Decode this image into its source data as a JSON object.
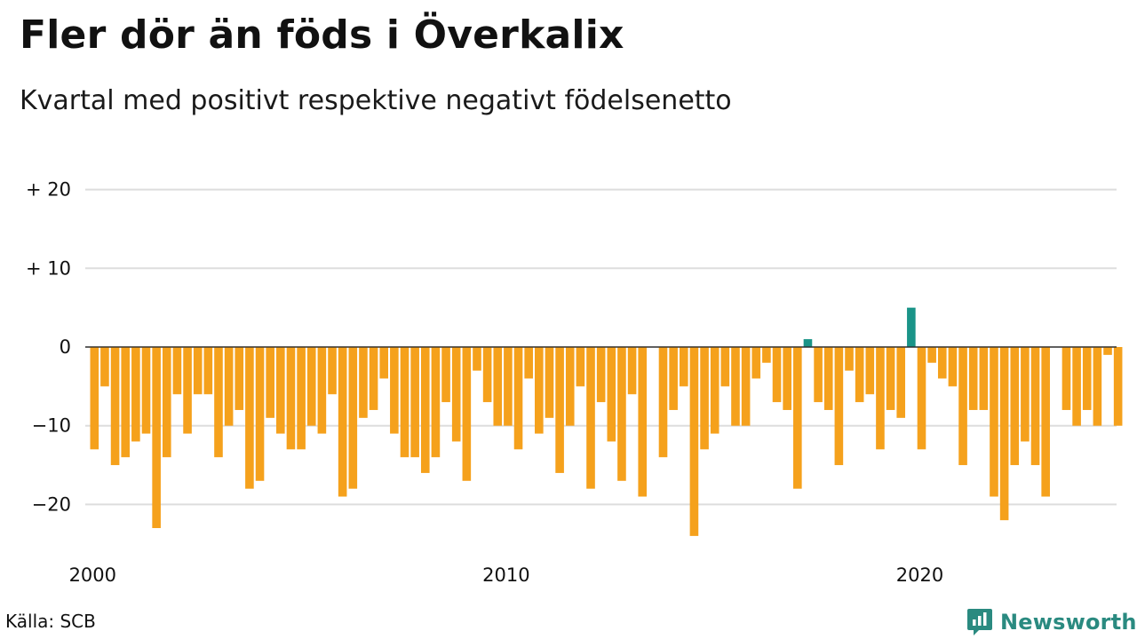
{
  "title": "Fler dör än föds i Överkalix",
  "subtitle": "Kvartal med positivt respektive negativt födelsenetto",
  "source": "Källa: SCB",
  "brand": {
    "name": "Newsworthy",
    "icon": "newsworthy-logo-icon",
    "color": "#2a8a80"
  },
  "chart_data": {
    "type": "bar",
    "x_tick_labels": [
      "2000",
      "2010",
      "2020"
    ],
    "x_tick_index": [
      0,
      40,
      80
    ],
    "y_ticks": [
      20,
      10,
      0,
      -10,
      -20
    ],
    "y_tick_labels": [
      "+ 20",
      "+ 10",
      "0",
      "−10",
      "−20"
    ],
    "ylim": [
      -26,
      22
    ],
    "grid": true,
    "colors": {
      "positive": "#1a9488",
      "negative": "#f5a11c",
      "grid": "#dddddd",
      "zero": "#222222"
    },
    "series": [
      {
        "values": [
          -13,
          -5,
          -15,
          -14,
          -12,
          -11,
          -23,
          -14,
          -6,
          -11,
          -6,
          -6,
          -14,
          -10,
          -8,
          -18,
          -17,
          -9,
          -11,
          -13,
          -13,
          -10,
          -11,
          -6,
          -19,
          -18,
          -9,
          -8,
          -4,
          -11,
          -14,
          -14,
          -16,
          -14,
          -7,
          -12,
          -17,
          -3,
          -7,
          -10,
          -10,
          -13,
          -4,
          -11,
          -9,
          -16,
          -10,
          -5,
          -18,
          -7,
          -12,
          -17,
          -6,
          -19,
          0,
          -14,
          -8,
          -5,
          -24,
          -13,
          -11,
          -5,
          -10,
          -10,
          -4,
          -2,
          -7,
          -8,
          -18,
          1,
          -7,
          -8,
          -15,
          -3,
          -7,
          -6,
          -13,
          -8,
          -9,
          5,
          -13,
          -2,
          -4,
          -5,
          -15,
          -8,
          -8,
          -19,
          -22,
          -15,
          -12,
          -15,
          -19,
          0,
          -8,
          -10,
          -8,
          -10,
          -1,
          -10
        ]
      }
    ]
  }
}
